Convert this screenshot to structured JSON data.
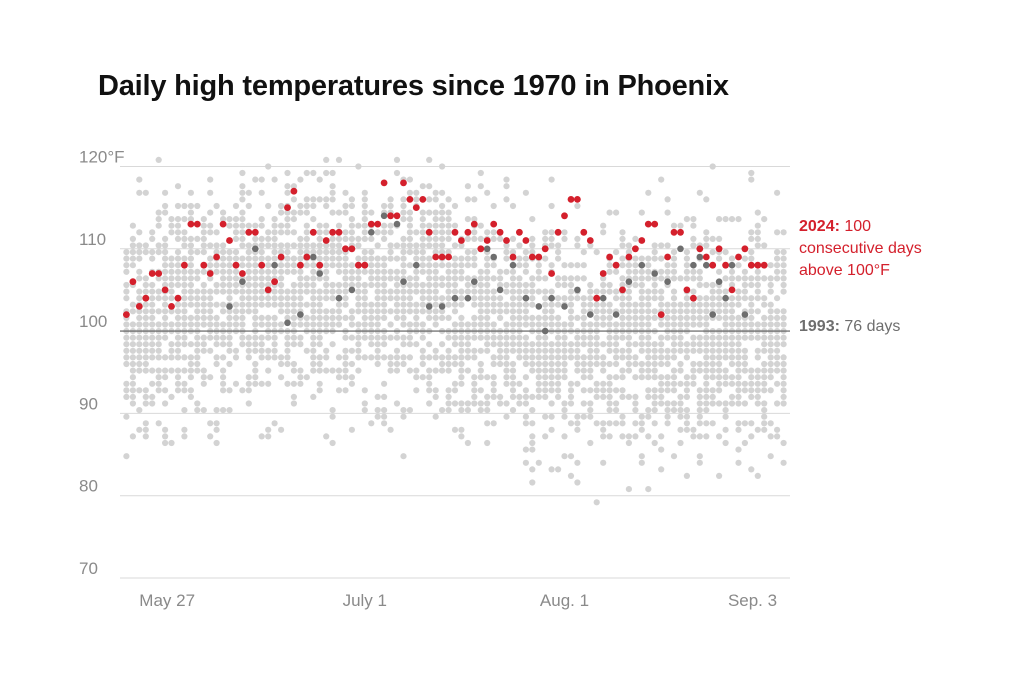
{
  "chart_data": {
    "type": "scatter",
    "title": "Daily high temperatures since 1970 in Phoenix",
    "xlabel": "",
    "ylabel": "",
    "y_unit": "°F",
    "x_tick_labels": [
      "May 27",
      "July 1",
      "Aug. 1",
      "Sep. 3"
    ],
    "x_tick_dates": [
      "05-27",
      "07-01",
      "08-01",
      "09-03"
    ],
    "xlim": [
      "05-24",
      "09-05"
    ],
    "ylim": [
      70,
      122
    ],
    "y_ticks": [
      70,
      80,
      90,
      100,
      110,
      120
    ],
    "y_tick_labels": [
      "70",
      "80",
      "90",
      "100",
      "110",
      "120°F"
    ],
    "reference_line": 100,
    "grid": "horizontal",
    "colors": {
      "2024": "#d4202c",
      "1993": "#6e6e6e",
      "other_years": "#d3d3d3"
    },
    "series": [
      {
        "name": "2024",
        "x": [
          "05-25",
          "05-26",
          "05-27",
          "05-28",
          "05-29",
          "05-30",
          "05-31",
          "06-01",
          "06-02",
          "06-03",
          "06-04",
          "06-05",
          "06-06",
          "06-07",
          "06-08",
          "06-09",
          "06-10",
          "06-11",
          "06-12",
          "06-13",
          "06-14",
          "06-15",
          "06-16",
          "06-17",
          "06-18",
          "06-19",
          "06-20",
          "06-21",
          "06-22",
          "06-23",
          "06-24",
          "06-25",
          "06-26",
          "06-27",
          "06-28",
          "06-29",
          "06-30",
          "07-01",
          "07-02",
          "07-03",
          "07-04",
          "07-05",
          "07-06",
          "07-07",
          "07-08",
          "07-09",
          "07-10",
          "07-11",
          "07-12",
          "07-13",
          "07-14",
          "07-15",
          "07-16",
          "07-17",
          "07-18",
          "07-19",
          "07-20",
          "07-21",
          "07-22",
          "07-23",
          "07-24",
          "07-25",
          "07-26",
          "07-27",
          "07-28",
          "07-29",
          "07-30",
          "07-31",
          "08-01",
          "08-02",
          "08-03",
          "08-04",
          "08-05",
          "08-06",
          "08-07",
          "08-08",
          "08-09",
          "08-10",
          "08-11",
          "08-12",
          "08-13",
          "08-14",
          "08-15",
          "08-16",
          "08-17",
          "08-18",
          "08-19",
          "08-20",
          "08-21",
          "08-22",
          "08-23",
          "08-24",
          "08-25",
          "08-26",
          "08-27",
          "08-28",
          "08-29",
          "08-30",
          "08-31",
          "09-01"
        ],
        "values": [
          102,
          106,
          103,
          104,
          107,
          107,
          105,
          103,
          104,
          108,
          113,
          113,
          108,
          107,
          109,
          113,
          111,
          108,
          107,
          112,
          112,
          108,
          105,
          106,
          109,
          115,
          117,
          108,
          109,
          112,
          108,
          111,
          112,
          112,
          110,
          110,
          108,
          108,
          113,
          113,
          118,
          114,
          114,
          118,
          116,
          115,
          116,
          112,
          109,
          109,
          109,
          112,
          111,
          112,
          113,
          110,
          111,
          113,
          112,
          111,
          109,
          112,
          111,
          109,
          109,
          110,
          107,
          112,
          114,
          116,
          116,
          112,
          111,
          104,
          107,
          109,
          108,
          105,
          109,
          110,
          111,
          113,
          113,
          102,
          109,
          112,
          112,
          105,
          104,
          110,
          109,
          108,
          110,
          108,
          105,
          109,
          110,
          108,
          108,
          108
        ]
      },
      {
        "name": "1993",
        "x": [
          "06-10",
          "06-12",
          "06-14",
          "06-17",
          "06-19",
          "06-21",
          "06-22",
          "06-23",
          "06-24",
          "06-27",
          "06-29",
          "07-01",
          "07-02",
          "07-04",
          "07-06",
          "07-07",
          "07-09",
          "07-11",
          "07-13",
          "07-15",
          "07-17",
          "07-18",
          "07-20",
          "07-21",
          "07-22",
          "07-24",
          "07-26",
          "07-28",
          "07-29",
          "07-30",
          "08-01",
          "08-03",
          "08-05",
          "08-07",
          "08-09",
          "08-11",
          "08-13",
          "08-15",
          "08-17",
          "08-19",
          "08-21",
          "08-22",
          "08-23",
          "08-24",
          "08-25",
          "08-26",
          "08-27",
          "08-29"
        ],
        "values": [
          103,
          106,
          110,
          108,
          101,
          102,
          109,
          109,
          107,
          104,
          105,
          108,
          112,
          114,
          113,
          106,
          108,
          103,
          103,
          104,
          104,
          106,
          110,
          109,
          105,
          108,
          104,
          103,
          100,
          104,
          103,
          105,
          102,
          104,
          102,
          106,
          108,
          107,
          106,
          110,
          108,
          109,
          108,
          102,
          106,
          104,
          108,
          102
        ]
      }
    ],
    "annotations": {
      "label_2024_year": "2024:",
      "label_2024_text": [
        " 100",
        "consecutive days",
        "above 100°F"
      ],
      "label_1993_year": "1993:",
      "label_1993_text": " 76 days"
    }
  }
}
